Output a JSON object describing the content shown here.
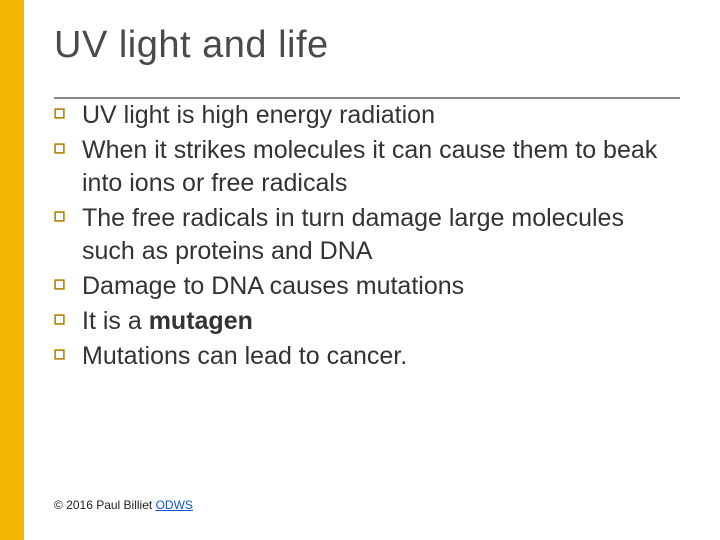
{
  "colors": {
    "accent": "#f2b705",
    "title": "#4a4a4a",
    "body": "#333333",
    "underline": "#888888",
    "bullet_border": "#b07d00",
    "copyright": "#222222",
    "link": "#1155cc"
  },
  "typography": {
    "title_size": 38,
    "body_size": 25,
    "body_line_height": 1.32,
    "copyright_size": 12
  },
  "title": "UV light and life",
  "bullets": [
    {
      "text": "UV light is high energy radiation"
    },
    {
      "text": "When it strikes molecules it can cause them to beak into ions or free radicals"
    },
    {
      "text": "The free radicals in turn damage large molecules such as proteins and DNA"
    },
    {
      "text": "Damage to DNA causes mutations"
    },
    {
      "html": "It is a <strong>mutagen</strong>"
    },
    {
      "text": "Mutations can lead to cancer."
    }
  ],
  "copyright": {
    "prefix": "© 2016 Paul Billiet ",
    "link_text": "ODWS"
  }
}
